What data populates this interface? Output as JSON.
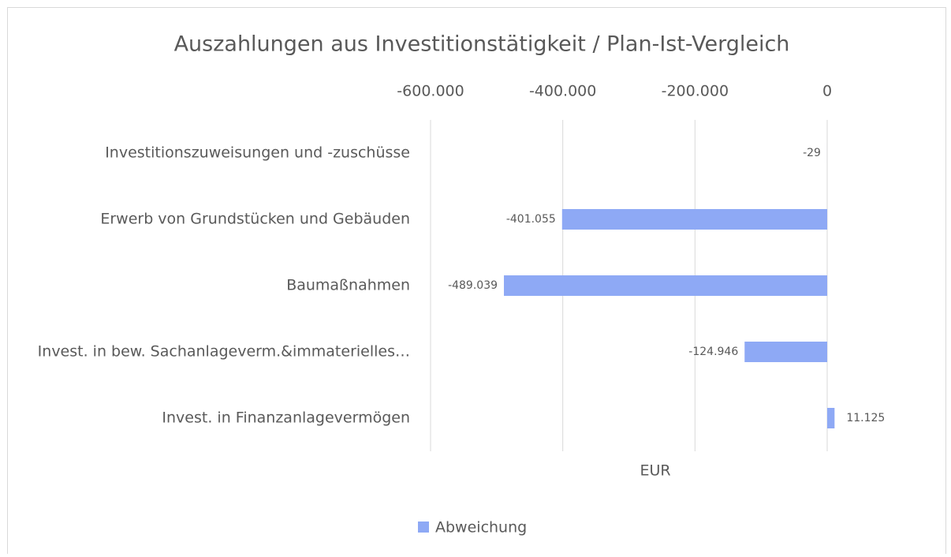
{
  "chart_data": {
    "type": "bar",
    "orientation": "horizontal",
    "title": "Auszahlungen aus Investitionstätigkeit / Plan-Ist-Vergleich",
    "x_label": "EUR",
    "categories": [
      "Investitionszuweisungen und -zuschüsse",
      "Erwerb von Grundstücken und Gebäuden",
      "Baumaßnahmen",
      "Invest. in bew. Sachanlageverm.&immaterielles…",
      "Invest. in Finanzanlagevermögen"
    ],
    "series": [
      {
        "name": "Abweichung",
        "color": "#8ea9f5",
        "values": [
          -29,
          -401055,
          -489039,
          -124946,
          11125
        ],
        "value_labels": [
          "-29",
          "-401.055",
          "-489.039",
          "-124.946",
          "11.125"
        ]
      }
    ],
    "xlim": [
      -600000,
      0
    ],
    "xticks": [
      {
        "value": -600000,
        "label": "-600.000"
      },
      {
        "value": -400000,
        "label": "-400.000"
      },
      {
        "value": -200000,
        "label": "-200.000"
      },
      0
    ],
    "grid": true,
    "legend": "bottom"
  }
}
